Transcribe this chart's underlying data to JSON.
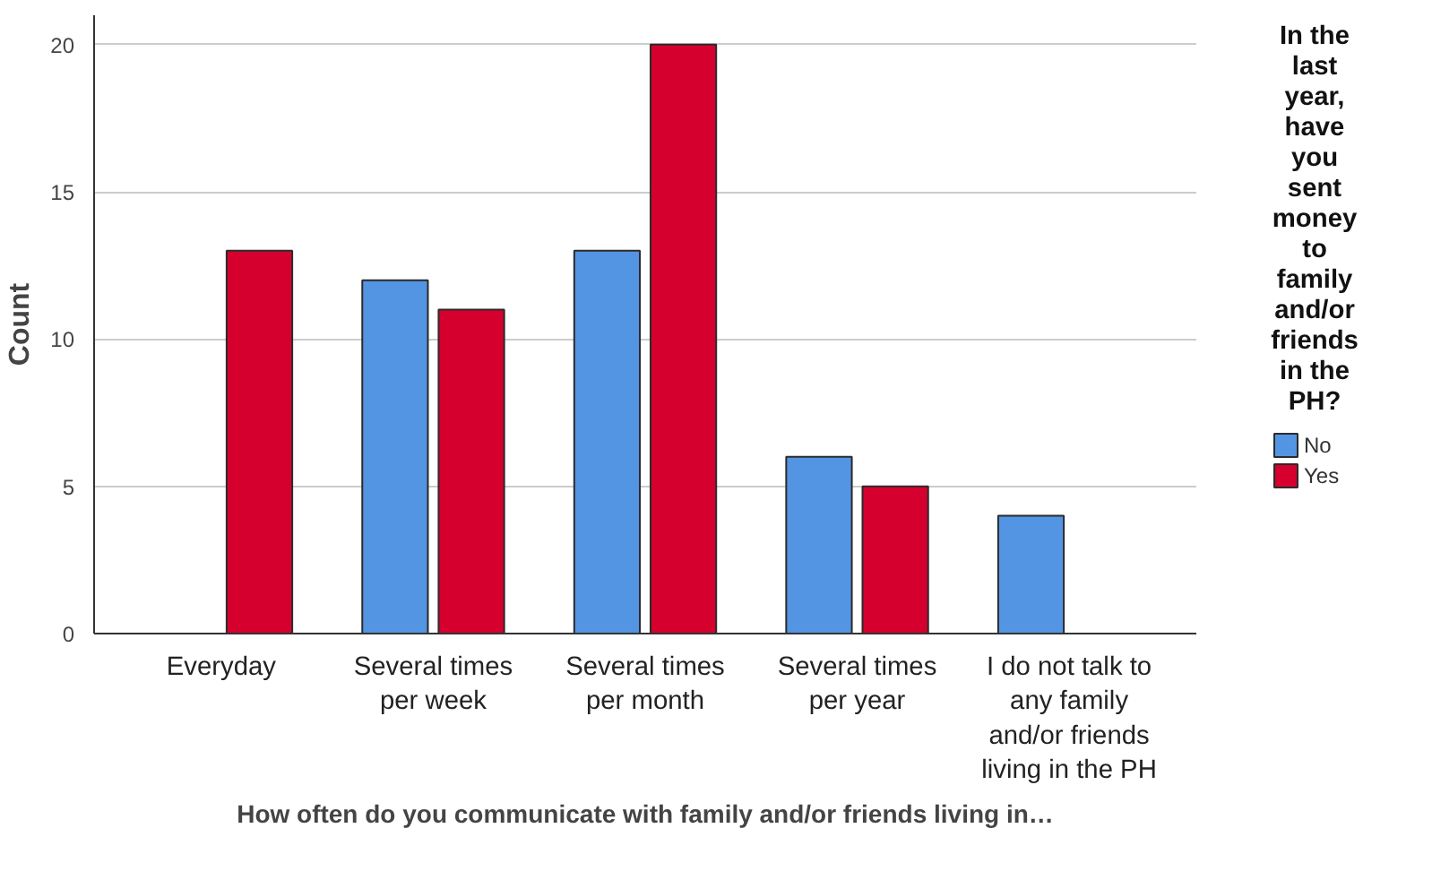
{
  "chart_data": {
    "type": "bar",
    "xlabel": "How often do you communicate with family and/or friends living in…",
    "ylabel": "Count",
    "legend_title": "In the last year, have you sent money to family and/or friends in the PH?",
    "categories": [
      "Everyday",
      "Several times per week",
      "Several times per month",
      "Several times per year",
      "I do not talk to any family and/or friends living in the PH"
    ],
    "series": [
      {
        "name": "No",
        "color": "#5394e3",
        "values": [
          null,
          12,
          13,
          6,
          4
        ]
      },
      {
        "name": "Yes",
        "color": "#d5002e",
        "values": [
          13,
          11,
          20,
          5,
          null
        ]
      }
    ],
    "ylim": [
      0,
      21
    ],
    "yticks": [
      0,
      5,
      10,
      15,
      20
    ],
    "grid": "y",
    "legend": "right"
  }
}
